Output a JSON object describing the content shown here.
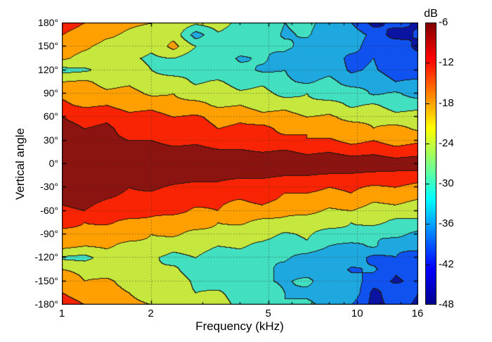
{
  "chart_data": {
    "type": "contourf-heatmap",
    "xlabel": "Frequency (kHz)",
    "ylabel": "Vertical angle",
    "x_scale": "log",
    "x_range_khz": [
      1,
      16
    ],
    "x_tick_values": [
      1,
      2,
      5,
      10,
      16
    ],
    "x_tick_labels": [
      "1",
      "2",
      "5",
      "10",
      "16"
    ],
    "x_minor_tick_values": [
      3,
      4,
      6,
      7,
      8,
      9,
      12,
      14
    ],
    "x_grid_values": [
      2,
      5,
      10
    ],
    "y_range_deg": [
      -180,
      180
    ],
    "y_tick_values": [
      180,
      150,
      120,
      90,
      60,
      30,
      0,
      -30,
      -60,
      -90,
      -120,
      -150,
      -180
    ],
    "y_tick_labels": [
      "180°",
      "150°",
      "120°",
      "90°",
      "60°",
      "30°",
      "0°",
      "-30°",
      "-60°",
      "-90°",
      "-120°",
      "-150°",
      "-180°"
    ],
    "y_grid_values": [
      150,
      120,
      90,
      60,
      30,
      0,
      -30,
      -60,
      -90,
      -120,
      -150
    ],
    "grid_on": true,
    "levels_db": [
      -48,
      -42,
      -36,
      -30,
      -24,
      -18,
      -12,
      -6
    ],
    "band_colors": [
      "#0a14a0",
      "#0f52f0",
      "#1fa8e0",
      "#42dfc0",
      "#c6e83e",
      "#ffa000",
      "#f92404",
      "#8b1411"
    ],
    "contour_line_color_rgb": [
      30,
      22,
      12
    ],
    "grid_line_color": "rgba(40,40,40,0.5)",
    "axis_color": "#000000",
    "frequencies_khz": [
      1.0,
      1.19,
      1.41,
      1.68,
      2.0,
      2.38,
      2.83,
      3.36,
      4.0,
      4.76,
      5.66,
      6.73,
      8.0,
      9.51,
      11.31,
      13.45,
      16.0
    ],
    "angles_deg": [
      180,
      165,
      150,
      135,
      120,
      105,
      90,
      75,
      60,
      45,
      30,
      15,
      0,
      -15,
      -30,
      -45,
      -60,
      -75,
      -90,
      -105,
      -120,
      -135,
      -150,
      -165,
      -180
    ],
    "values_db": [
      [
        -10,
        -12,
        -15,
        -17,
        -18,
        -19,
        -23,
        -21,
        -26,
        -25,
        -30,
        -28,
        -33,
        -36,
        -44,
        -40,
        -43
      ],
      [
        -12,
        -14,
        -17,
        -19,
        -21,
        -20,
        -33,
        -25,
        -27,
        -26,
        -31,
        -29,
        -35,
        -32,
        -38,
        -45,
        -41
      ],
      [
        -15,
        -17,
        -20,
        -19,
        -23,
        -16,
        -24,
        -28,
        -26,
        -30,
        -28,
        -33,
        -36,
        -33,
        -40,
        -37,
        -44
      ],
      [
        -17,
        -20,
        -19,
        -23,
        -25,
        -24,
        -28,
        -26,
        -31,
        -29,
        -33,
        -35,
        -32,
        -38,
        -36,
        -42,
        -39
      ],
      [
        -26,
        -25,
        -22,
        -21,
        -24,
        -27,
        -25,
        -29,
        -28,
        -31,
        -30,
        -34,
        -32,
        -37,
        -35,
        -40,
        -42
      ],
      [
        -18,
        -17,
        -20,
        -19,
        -22,
        -21,
        -25,
        -23,
        -27,
        -25,
        -29,
        -31,
        -28,
        -33,
        -31,
        -36,
        -34
      ],
      [
        -13,
        -15,
        -17,
        -16,
        -19,
        -18,
        -21,
        -20,
        -23,
        -22,
        -26,
        -24,
        -28,
        -26,
        -31,
        -29,
        -33
      ],
      [
        -11,
        -13,
        -12,
        -15,
        -14,
        -17,
        -16,
        -19,
        -18,
        -21,
        -20,
        -23,
        -21,
        -25,
        -23,
        -27,
        -26
      ],
      [
        -6,
        -8,
        -7,
        -10,
        -9,
        -12,
        -11,
        -14,
        -13,
        -16,
        -15,
        -18,
        -17,
        -20,
        -19,
        -22,
        -21
      ],
      [
        -4,
        -6,
        -5,
        -8,
        -7,
        -10,
        -9,
        -12,
        -11,
        -10,
        -14,
        -12,
        -16,
        -15,
        -18,
        -16,
        -19
      ],
      [
        -3,
        -4,
        -5,
        -6,
        -6,
        -8,
        -7,
        -9,
        -9,
        -11,
        -10,
        -12,
        -11,
        -14,
        -12,
        -15,
        -13
      ],
      [
        -1,
        -2,
        -2,
        -3,
        -3,
        -4,
        -4,
        -5,
        -5,
        -6,
        -5,
        -7,
        -6,
        -8,
        -7,
        -9,
        -8
      ],
      [
        0,
        0,
        0,
        0,
        0,
        0,
        -1,
        0,
        -1,
        -1,
        -1,
        -2,
        -1,
        -2,
        -2,
        -3,
        -2
      ],
      [
        -1,
        -1,
        -2,
        -2,
        -3,
        -3,
        -4,
        -4,
        -5,
        -5,
        -6,
        -6,
        -7,
        -7,
        -8,
        -8,
        -9
      ],
      [
        -3,
        -5,
        -4,
        -6,
        -5,
        -7,
        -8,
        -8,
        -10,
        -9,
        -11,
        -10,
        -12,
        -11,
        -13,
        -12,
        -14
      ],
      [
        -5,
        -4,
        -6,
        -7,
        -8,
        -9,
        -10,
        -11,
        -12,
        -10,
        -13,
        -14,
        -15,
        -13,
        -17,
        -16,
        -18
      ],
      [
        -7,
        -6,
        -9,
        -8,
        -11,
        -10,
        -13,
        -12,
        -15,
        -14,
        -17,
        -16,
        -19,
        -18,
        -21,
        -20,
        -22
      ],
      [
        -10,
        -12,
        -11,
        -14,
        -13,
        -16,
        -15,
        -18,
        -17,
        -20,
        -19,
        -22,
        -21,
        -24,
        -22,
        -26,
        -25
      ],
      [
        -14,
        -13,
        -16,
        -15,
        -18,
        -17,
        -20,
        -19,
        -22,
        -21,
        -25,
        -23,
        -27,
        -25,
        -30,
        -28,
        -32
      ],
      [
        -16,
        -18,
        -17,
        -20,
        -19,
        -22,
        -21,
        -24,
        -23,
        -26,
        -28,
        -25,
        -30,
        -32,
        -29,
        -35,
        -33
      ],
      [
        -25,
        -26,
        -21,
        -22,
        -23,
        -26,
        -24,
        -28,
        -27,
        -30,
        -29,
        -33,
        -35,
        -32,
        -38,
        -36,
        -41
      ],
      [
        -18,
        -19,
        -21,
        -20,
        -24,
        -23,
        -27,
        -25,
        -30,
        -28,
        -32,
        -34,
        -31,
        -37,
        -35,
        -41,
        -38
      ],
      [
        -15,
        -18,
        -17,
        -20,
        -22,
        -21,
        -25,
        -27,
        -24,
        -29,
        -31,
        -28,
        -35,
        -33,
        -39,
        -43,
        -40
      ],
      [
        -12,
        -14,
        -16,
        -18,
        -20,
        -22,
        -24,
        -23,
        -27,
        -25,
        -30,
        -32,
        -34,
        -31,
        -44,
        -38,
        -42
      ],
      [
        -10,
        -12,
        -15,
        -17,
        -18,
        -19,
        -23,
        -21,
        -26,
        -25,
        -30,
        -28,
        -33,
        -36,
        -44,
        -40,
        -43
      ]
    ],
    "colorbar": {
      "label": "dB",
      "tick_values": [
        -6,
        -12,
        -18,
        -24,
        -30,
        -36,
        -42,
        -48
      ],
      "tick_labels": [
        "-6",
        "-12",
        "-18",
        "-24",
        "-30",
        "-36",
        "-42",
        "-48"
      ],
      "top_value": -6,
      "bottom_value": -48,
      "gradient_stops": [
        [
          "0%",
          "#800000"
        ],
        [
          "12.5%",
          "#ff0000"
        ],
        [
          "37.5%",
          "#ffff00"
        ],
        [
          "62.5%",
          "#00ffff"
        ],
        [
          "87.5%",
          "#0000ff"
        ],
        [
          "100%",
          "#00008f"
        ]
      ]
    }
  }
}
